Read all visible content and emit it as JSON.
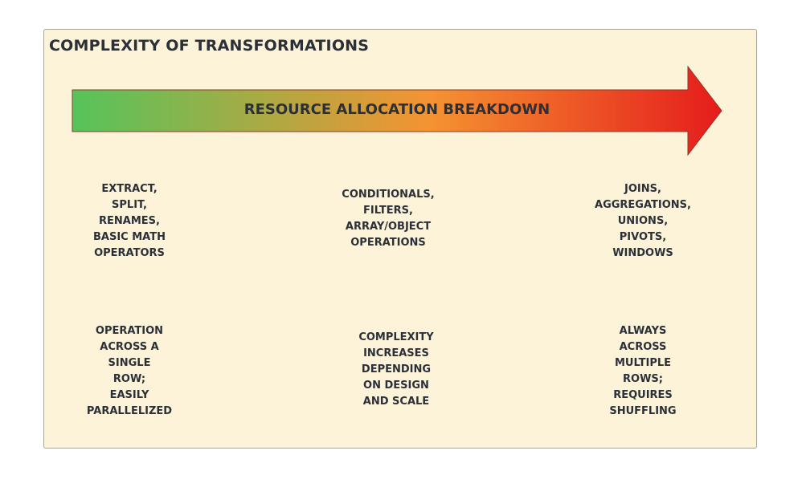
{
  "title": "COMPLEXITY OF TRANSFORMATIONS",
  "arrow": {
    "label": "RESOURCE ALLOCATION BREAKDOWN",
    "gradient_start": "#55c45a",
    "gradient_mid": "#f59331",
    "gradient_end": "#e51c1c"
  },
  "columns": [
    {
      "operations": [
        "EXTRACT,",
        "SPLIT,",
        "RENAMES,",
        "BASIC MATH",
        "OPERATORS"
      ],
      "description": [
        "OPERATION",
        "ACROSS A",
        "SINGLE",
        "ROW;",
        "EASILY",
        "PARALLELIZED"
      ]
    },
    {
      "operations": [
        "CONDITIONALS,",
        "FILTERS,",
        "ARRAY/OBJECT",
        "OPERATIONS"
      ],
      "description": [
        "COMPLEXITY",
        "INCREASES",
        "DEPENDING",
        "ON DESIGN",
        "AND SCALE"
      ]
    },
    {
      "operations": [
        "JOINS,",
        "AGGREGATIONS,",
        "UNIONS,",
        "PIVOTS,",
        "WINDOWS"
      ],
      "description": [
        "ALWAYS",
        "ACROSS",
        "MULTIPLE",
        "ROWS;",
        "REQUIRES",
        "SHUFFLING"
      ]
    }
  ]
}
